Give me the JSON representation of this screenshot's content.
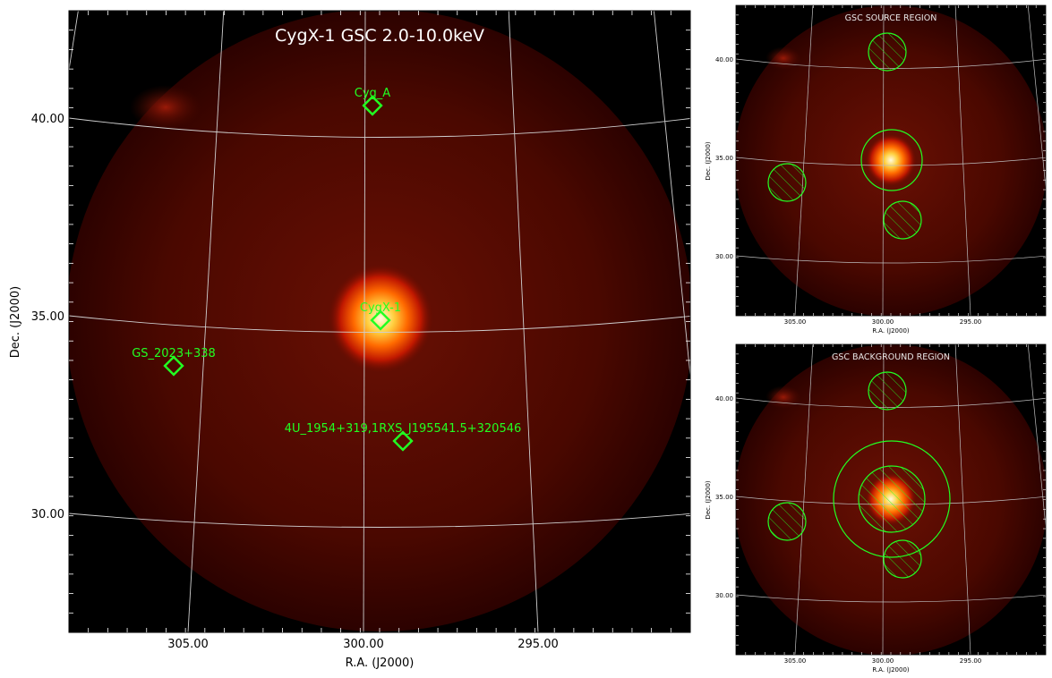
{
  "main": {
    "title": "CygX-1 GSC 2.0-10.0keV",
    "xlabel": "R.A. (J2000)",
    "ylabel": "Dec. (J2000)",
    "ra_ticks": [
      "305.00",
      "300.00",
      "295.00"
    ],
    "dec_ticks": [
      "40.00",
      "35.00",
      "30.00"
    ],
    "sources": [
      {
        "label": "Cyg_A"
      },
      {
        "label": "CygX-1"
      },
      {
        "label": "GS_2023+338"
      },
      {
        "label": "4U_1954+319,1RXS_J195541.5+320546"
      }
    ]
  },
  "source_panel": {
    "title": "GSC SOURCE REGION",
    "xlabel": "R.A. (J2000)",
    "ylabel": "Dec. (J2000)",
    "ra_ticks": [
      "305.00",
      "300.00",
      "295.00"
    ],
    "dec_ticks": [
      "40.00",
      "35.00",
      "30.00"
    ]
  },
  "background_panel": {
    "title": "GSC BACKGROUND REGION",
    "xlabel": "R.A. (J2000)",
    "ylabel": "Dec. (J2000)",
    "ra_ticks": [
      "305.00",
      "300.00",
      "295.00"
    ],
    "dec_ticks": [
      "40.00",
      "35.00",
      "30.00"
    ]
  },
  "colors": {
    "region": "#22ff22",
    "grid": "#cfcfcf",
    "disk_inner": "#5a0a00",
    "disk_outer": "#300200",
    "hot": "#fff2c0",
    "sky": "#000000"
  }
}
